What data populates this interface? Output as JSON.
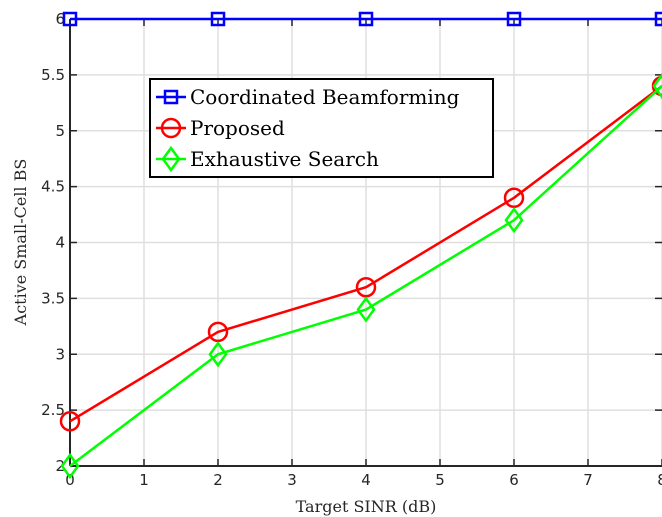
{
  "chart_data": {
    "type": "line",
    "title": "",
    "xlabel": "Target SINR (dB)",
    "ylabel": "Active Small-Cell BS",
    "xlim": [
      0,
      8
    ],
    "ylim": [
      2,
      6
    ],
    "xticks": [
      "0",
      "1",
      "2",
      "3",
      "4",
      "5",
      "6",
      "7",
      "8"
    ],
    "yticks": [
      "2",
      "2.5",
      "3",
      "3.5",
      "4",
      "4.5",
      "5",
      "5.5",
      "6"
    ],
    "grid": true,
    "legend_position": "top-left",
    "series": [
      {
        "name": "Coordinated Beamforming",
        "color": "#0000ff",
        "marker": "square",
        "x": [
          0,
          2,
          4,
          6,
          8
        ],
        "y": [
          6,
          6,
          6,
          6,
          6
        ]
      },
      {
        "name": "Proposed",
        "color": "#ff0000",
        "marker": "circle",
        "x": [
          0,
          2,
          4,
          6,
          8
        ],
        "y": [
          2.4,
          3.2,
          3.6,
          4.4,
          5.4
        ]
      },
      {
        "name": "Exhaustive Search",
        "color": "#00ff00",
        "marker": "diamond",
        "x": [
          0,
          2,
          4,
          6,
          8
        ],
        "y": [
          2.0,
          3.0,
          3.4,
          4.2,
          5.4
        ]
      }
    ]
  }
}
